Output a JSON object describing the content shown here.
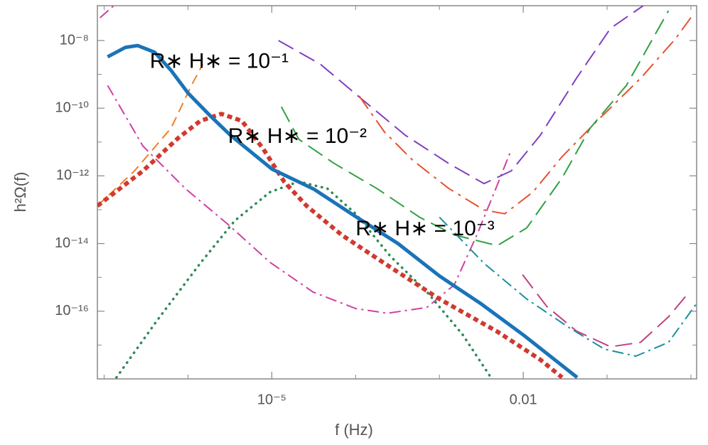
{
  "chart_data": {
    "type": "line",
    "xlabel": "f (Hz)",
    "ylabel": "h²Ω(f)",
    "xscale": "log",
    "yscale": "log",
    "xlim": [
      8.3e-08,
      1.17
    ],
    "ylim": [
      1e-18,
      1.07e-07
    ],
    "xticks": [
      {
        "value": 1e-05,
        "label": "10⁻⁵"
      },
      0.01
    ],
    "xminorticks": [
      1e-07,
      1e-06,
      0.0001,
      0.001,
      0.1,
      1
    ],
    "yticks": [
      {
        "value": 1e-16,
        "label": "10⁻¹⁶"
      },
      {
        "value": 1e-14,
        "label": "10⁻¹⁴"
      },
      {
        "value": 1e-12,
        "label": "10⁻¹²"
      },
      {
        "value": 1e-10,
        "label": "10⁻¹⁰"
      },
      {
        "value": 1e-08,
        "label": "10⁻⁸"
      }
    ],
    "yminorticks": [
      1e-17,
      1e-15,
      1e-13,
      1e-11,
      1e-09
    ],
    "annotations": [
      {
        "text": "R∗ H∗ = 10⁻¹",
        "x": 3.5e-07,
        "y": 2.3e-09
      },
      {
        "text": "R∗ H∗ = 10⁻²",
        "x": 3e-06,
        "y": 1.4e-11
      },
      {
        "text": "R∗ H∗ = 10⁻³",
        "x": 0.0001,
        "y": 2.6e-14
      }
    ],
    "series": [
      {
        "color": "#f08020",
        "line_style": "dashed",
        "x": [
          8.3e-08,
          2.3e-07,
          6.3e-07,
          1.1e-06,
          1.5e-06
        ],
        "values": [
          1.3e-13,
          1.4e-12,
          2.6e-11,
          4.7e-10,
          2e-09
        ]
      },
      {
        "color": "#d040a0",
        "line_style": "dashdot",
        "x": [
          1.1e-07,
          2.9e-07,
          9.3e-07,
          3e-06,
          9.5e-06,
          3.1e-05,
          0.0001,
          0.00024,
          0.00071,
          0.0015,
          0.0028,
          0.0049,
          0.0072
        ],
        "values": [
          4.7e-10,
          7.6e-12,
          4.2e-13,
          3.7e-14,
          2.8e-15,
          3.7e-16,
          1.2e-16,
          8.7e-17,
          1.3e-16,
          6e-16,
          1.8e-14,
          5.4e-13,
          6e-12
        ]
      },
      {
        "color": "#d040a0",
        "line_style": "dashdot",
        "x": [
          8.9e-08,
          1.3e-07
        ],
        "values": [
          4.7e-08,
          1.07e-07
        ]
      },
      {
        "color": "#8040c0",
        "line_style": "longdash",
        "x": [
          1.2e-05,
          3.8e-05,
          0.00012,
          0.00039,
          0.0013,
          0.0034,
          0.0072,
          0.016,
          0.043,
          0.11,
          0.27
        ],
        "values": [
          1e-08,
          2e-09,
          1.8e-10,
          1.6e-11,
          2.3e-12,
          5.9e-13,
          1.4e-12,
          1.6e-11,
          7.6e-10,
          2.3e-08,
          1.07e-07
        ]
      },
      {
        "color": "#e85030",
        "line_style": "longdashdot",
        "x": [
          0.00011,
          0.00022,
          0.00048,
          0.0013,
          0.0034,
          0.006,
          0.013,
          0.029,
          0.076,
          0.25,
          0.65,
          1.07
        ],
        "values": [
          2.3e-10,
          2e-11,
          2.9e-12,
          4.2e-13,
          9.8e-14,
          7.6e-14,
          3.3e-13,
          3.7e-12,
          4.2e-11,
          7.6e-10,
          1.1e-08,
          6e-08
        ]
      },
      {
        "color": "#30a040",
        "line_style": "longdash",
        "x": [
          1.3e-05,
          2.1e-05,
          5.6e-05,
          0.00018,
          0.00058,
          0.0015,
          0.0049,
          0.011,
          0.029,
          0.063,
          0.17,
          0.54
        ],
        "values": [
          1.1e-10,
          1.2e-11,
          2.3e-12,
          4.2e-13,
          6e-14,
          1.8e-14,
          8.7e-15,
          2.9e-14,
          8.7e-13,
          2.6e-11,
          4.7e-10,
          7.6e-08
        ]
      },
      {
        "color": "#1a8fa0",
        "line_style": "dashdot",
        "x": [
          0.001,
          0.0034,
          0.011,
          0.035,
          0.093,
          0.22,
          0.54,
          1.15
        ],
        "values": [
          6e-14,
          2.6e-15,
          2.3e-16,
          3.3e-17,
          7.6e-18,
          4.7e-18,
          1.2e-17,
          1.6e-16
        ]
      },
      {
        "color": "#c04080",
        "line_style": "longdash",
        "x": [
          0.0098,
          0.019,
          0.043,
          0.11,
          0.25,
          0.54,
          0.93
        ],
        "values": [
          1.2e-15,
          1.4e-16,
          2.6e-17,
          8.9e-18,
          1.2e-17,
          6.8e-17,
          3.4e-16
        ]
      },
      {
        "color": "#2e8b57",
        "line_style": "dotted",
        "x": [
          1.4e-07,
          4.3e-07,
          1.4e-06,
          3.6e-06,
          9.5e-06,
          2.1e-05,
          4.6e-05,
          0.0001,
          0.00026,
          0.00071,
          0.0019,
          0.0041
        ],
        "values": [
          1.1e-18,
          5.4e-17,
          2.6e-15,
          4.7e-14,
          3.3e-13,
          6.8e-13,
          4.2e-13,
          7.6e-14,
          4.2e-15,
          3.7e-16,
          2e-17,
          1.1e-18
        ]
      },
      {
        "color": "#d03a2f",
        "line_style": "thick-dashed",
        "x": [
          8.3e-08,
          2.9e-07,
          7.6e-07,
          1.4e-06,
          2.5e-06,
          4.4e-06,
          7.9e-06,
          1.4e-05,
          2.6e-05,
          6.8e-05,
          0.00026,
          0.001,
          0.0049,
          0.016,
          0.029
        ],
        "values": [
          1.3e-13,
          1.4e-12,
          1.3e-11,
          4.2e-11,
          6.8e-11,
          4.2e-11,
          6.3e-12,
          6.8e-13,
          1.3e-13,
          1.8e-14,
          2e-15,
          2.3e-16,
          2.5e-17,
          3.7e-18,
          1.1e-18
        ]
      },
      {
        "color": "#1a74b8",
        "line_style": "thick-solid",
        "x": [
          1.1e-07,
          1.8e-07,
          2.5e-07,
          4e-07,
          6.3e-07,
          1e-06,
          1.8e-06,
          3.2e-06,
          1e-05,
          3.2e-05,
          0.0001,
          0.00032,
          0.001,
          0.0032,
          0.01,
          0.044
        ],
        "values": [
          3.3e-09,
          6.3e-09,
          7.1e-09,
          4.5e-09,
          1.3e-09,
          2.8e-10,
          6.3e-11,
          1.6e-11,
          1.6e-12,
          4e-13,
          6.3e-14,
          1e-14,
          1.1e-15,
          1.6e-16,
          2e-17,
          1.1e-18
        ]
      }
    ]
  }
}
